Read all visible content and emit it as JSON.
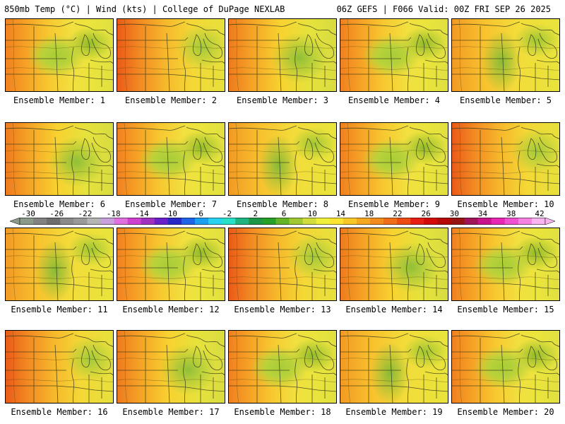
{
  "header": {
    "left": "850mb Temp (°C) | Wind (kts) | College of DuPage NEXLAB",
    "right": "06Z GEFS | F066 Valid: 00Z FRI SEP 26 2025"
  },
  "panels": [
    {
      "caption": "Ensemble Member: 1"
    },
    {
      "caption": "Ensemble Member: 2"
    },
    {
      "caption": "Ensemble Member: 3"
    },
    {
      "caption": "Ensemble Member: 4"
    },
    {
      "caption": "Ensemble Member: 5"
    },
    {
      "caption": "Ensemble Member: 6"
    },
    {
      "caption": "Ensemble Member: 7"
    },
    {
      "caption": "Ensemble Member: 8"
    },
    {
      "caption": "Ensemble Member: 9"
    },
    {
      "caption": "Ensemble Member: 10"
    },
    {
      "caption": "Ensemble Member: 11"
    },
    {
      "caption": "Ensemble Member: 12"
    },
    {
      "caption": "Ensemble Member: 13"
    },
    {
      "caption": "Ensemble Member: 14"
    },
    {
      "caption": "Ensemble Member: 15"
    },
    {
      "caption": "Ensemble Member: 16"
    },
    {
      "caption": "Ensemble Member: 17"
    },
    {
      "caption": "Ensemble Member: 18"
    },
    {
      "caption": "Ensemble Member: 19"
    },
    {
      "caption": "Ensemble Member: 20"
    }
  ],
  "colorbar": {
    "labels": [
      "-30",
      "-26",
      "-22",
      "-18",
      "-14",
      "-10",
      "-6",
      "-2",
      "2",
      "6",
      "10",
      "14",
      "18",
      "22",
      "26",
      "30",
      "34",
      "38",
      "42"
    ],
    "colors": [
      "#8c9a8c",
      "#828282",
      "#6e6e6e",
      "#8a8a8a",
      "#9a9a9a",
      "#b4b4b4",
      "#c8a0dc",
      "#e070e0",
      "#d040d0",
      "#a030c0",
      "#6a20c8",
      "#2828c8",
      "#1e64e6",
      "#1ea0f0",
      "#28d2f0",
      "#28e0c8",
      "#20b480",
      "#1e9646",
      "#28a028",
      "#64b428",
      "#a0c832",
      "#d2dc3c",
      "#f0f03c",
      "#fae632",
      "#f8c828",
      "#f6a823",
      "#f28c1e",
      "#f06e19",
      "#ee4a14",
      "#e61e14",
      "#d20a0a",
      "#b40a0a",
      "#961414",
      "#a0145a",
      "#c8148c",
      "#e628b4",
      "#f050d2",
      "#f582e1",
      "#fab4f0"
    ]
  }
}
